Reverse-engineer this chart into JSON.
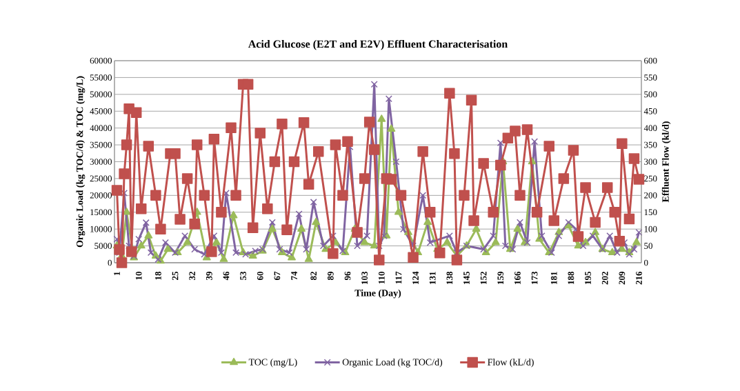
{
  "chart_data": {
    "type": "line",
    "title": "Acid Glucose (E2T and E2V) Effluent Characterisation",
    "xlabel": "Time (Day)",
    "ylabel": "Organic Load (kg TOC/d) & TOC (mg/L)",
    "y2label": "Effluent Flow (kl/d)",
    "xlim": [
      0,
      217
    ],
    "xticks": [
      1,
      10,
      18,
      25,
      32,
      39,
      46,
      53,
      60,
      67,
      74,
      82,
      89,
      96,
      103,
      110,
      117,
      124,
      131,
      138,
      145,
      152,
      159,
      166,
      173,
      181,
      188,
      195,
      202,
      209,
      216
    ],
    "ylim": [
      0,
      60000
    ],
    "yticks": [
      0,
      5000,
      10000,
      15000,
      20000,
      25000,
      30000,
      35000,
      40000,
      45000,
      50000,
      55000,
      60000
    ],
    "y2lim": [
      0,
      600
    ],
    "y2ticks": [
      0,
      50,
      100,
      150,
      200,
      250,
      300,
      350,
      400,
      450,
      500,
      550,
      600
    ],
    "grid": "y",
    "legend": "bottom",
    "series": [
      {
        "name": "TOC (mg/L)",
        "color": "#9bbb59",
        "marker": "triangle",
        "x": [
          1,
          3,
          5,
          8,
          11,
          14,
          17,
          19,
          22,
          26,
          30,
          34,
          38,
          42,
          45,
          49,
          53,
          57,
          61,
          65,
          69,
          73,
          77,
          80,
          83,
          87,
          91,
          95,
          99,
          103,
          107,
          110,
          112,
          114,
          117,
          121,
          125,
          129,
          133,
          137,
          141,
          145,
          149,
          153,
          157,
          160,
          163,
          166,
          169,
          172,
          175,
          179,
          183,
          187,
          191,
          194,
          198,
          201,
          205,
          209,
          212,
          215
        ],
        "values": [
          5000,
          2000,
          15000,
          1500,
          5000,
          8000,
          2000,
          500,
          4000,
          3000,
          6000,
          15000,
          1500,
          6000,
          1000,
          14000,
          3000,
          2000,
          3500,
          10000,
          3000,
          1500,
          10000,
          1000,
          12000,
          4000,
          6000,
          3000,
          10000,
          6000,
          5000,
          42600,
          8000,
          39700,
          15000,
          9000,
          3000,
          12000,
          4000,
          6000,
          2000,
          5000,
          10000,
          3000,
          6000,
          30000,
          4000,
          10000,
          6000,
          30000,
          7000,
          3000,
          9000,
          11000,
          5000,
          6000,
          9000,
          4000,
          3000,
          4000,
          3000,
          6000
        ]
      },
      {
        "name": "Organic Load (kg TOC/d)",
        "color": "#8064a2",
        "marker": "cross",
        "x": [
          1,
          2,
          4,
          6,
          8,
          10,
          13,
          15,
          18,
          21,
          25,
          29,
          33,
          37,
          41,
          44,
          46,
          50,
          54,
          58,
          61,
          65,
          68,
          72,
          76,
          79,
          82,
          86,
          90,
          94,
          97,
          100,
          104,
          107,
          109,
          111,
          113,
          116,
          119,
          123,
          127,
          130,
          134,
          138,
          141,
          145,
          148,
          152,
          156,
          159,
          161,
          164,
          167,
          170,
          173,
          176,
          180,
          183,
          187,
          190,
          193,
          197,
          201,
          204,
          207,
          210,
          212,
          214,
          216
        ],
        "values": [
          7000,
          3000,
          20700,
          5000,
          2000,
          7000,
          11900,
          3000,
          1000,
          6000,
          3000,
          8000,
          4000,
          2500,
          8000,
          3000,
          20700,
          3000,
          2500,
          3500,
          4000,
          12000,
          4000,
          3000,
          14500,
          4000,
          18000,
          5000,
          8000,
          3500,
          34400,
          5000,
          8000,
          53000,
          5000,
          8000,
          48700,
          30000,
          10000,
          5000,
          20000,
          6000,
          null,
          8000,
          3000,
          5000,
          null,
          4000,
          8000,
          35600,
          5000,
          4000,
          12000,
          6000,
          36000,
          8000,
          3000,
          8000,
          12000,
          10000,
          5000,
          8000,
          4000,
          8000,
          3000,
          6000,
          2500,
          4000,
          9000
        ]
      },
      {
        "name": "Flow (kL/d)",
        "color": "#c0504d",
        "marker": "square",
        "axis": "y2",
        "x": [
          1,
          2,
          3,
          4,
          5,
          6,
          7,
          9,
          11,
          14,
          17,
          19,
          23,
          25,
          27,
          30,
          33,
          34,
          37,
          40,
          41,
          44,
          48,
          50,
          53,
          55,
          57,
          60,
          63,
          66,
          69,
          71,
          74,
          78,
          80,
          84,
          90,
          91,
          94,
          96,
          100,
          103,
          105,
          107,
          109,
          112,
          114,
          118,
          123,
          127,
          130,
          134,
          138,
          140,
          141,
          144,
          147,
          148,
          152,
          156,
          159,
          162,
          165,
          167,
          170,
          174,
          179,
          181,
          185,
          189,
          191,
          194,
          198,
          203,
          206,
          208,
          209,
          212,
          214,
          216
        ],
        "values": [
          215,
          39,
          0,
          264,
          350,
          457,
          33,
          446,
          160,
          346,
          200,
          100,
          324,
          324,
          129,
          250,
          115,
          350,
          200,
          33,
          367,
          150,
          401,
          200,
          530,
          530,
          104,
          385,
          160,
          300,
          412,
          98,
          300,
          416,
          233,
          330,
          27,
          350,
          200,
          360,
          90,
          250,
          418,
          336,
          8,
          250,
          248,
          200,
          16,
          330,
          150,
          29,
          503,
          324,
          8,
          200,
          483,
          125,
          295,
          150,
          290,
          370,
          391,
          200,
          395,
          150,
          346,
          125,
          250,
          334,
          78,
          223,
          120,
          223,
          150,
          64,
          354,
          130,
          309,
          248
        ]
      }
    ]
  }
}
